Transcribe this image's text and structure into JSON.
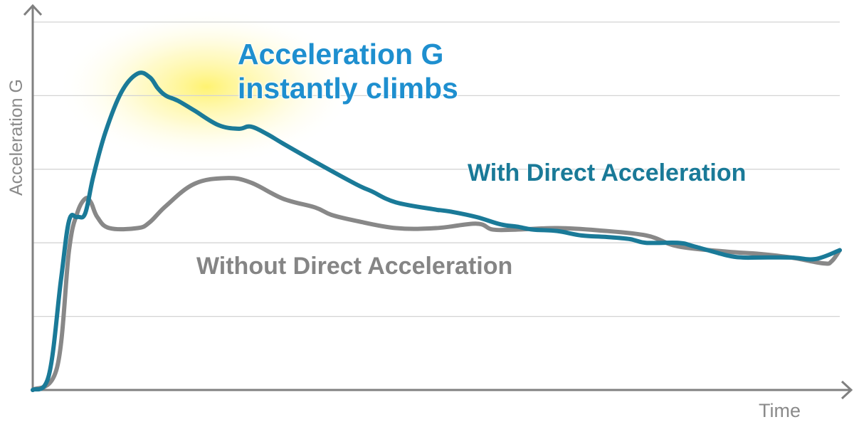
{
  "chart_data": {
    "type": "line",
    "title": "",
    "xlabel": "Time",
    "ylabel": "Acceleration G",
    "x_units": "normalized time (0 = origin, 1 = right end of data)",
    "y_units": "gridline units (0 = x-axis, each horizontal gridline = 1; no numeric ticks shown)",
    "ylim": [
      0,
      5
    ],
    "xlim": [
      0,
      1
    ],
    "grid": {
      "horizontal": true,
      "vertical": false,
      "lines": [
        1,
        2,
        3,
        4,
        5
      ]
    },
    "legend_position": "inline labels",
    "annotations": [
      {
        "text": "Acceleration G instantly climbs",
        "lines": [
          "Acceleration G",
          "instantly climbs"
        ],
        "x": 0.28,
        "y": 4.3,
        "highlight": "yellow glow around peak"
      }
    ],
    "series": [
      {
        "name": "With Direct Acceleration",
        "color": "#1a7a98",
        "x": [
          0.0,
          0.02,
          0.035,
          0.045,
          0.055,
          0.065,
          0.075,
          0.09,
          0.11,
          0.13,
          0.145,
          0.155,
          0.165,
          0.18,
          0.2,
          0.23,
          0.255,
          0.27,
          0.29,
          0.31,
          0.35,
          0.4,
          0.42,
          0.45,
          0.5,
          0.5,
          0.52,
          0.55,
          0.58,
          0.6,
          0.62,
          0.65,
          0.68,
          0.71,
          0.74,
          0.76,
          0.8,
          0.82,
          0.86,
          0.88,
          0.9,
          0.94,
          0.97,
          1.0
        ],
        "y": [
          0.0,
          0.2,
          1.5,
          2.3,
          2.35,
          2.4,
          2.9,
          3.5,
          4.05,
          4.3,
          4.25,
          4.1,
          4.0,
          3.93,
          3.8,
          3.6,
          3.55,
          3.58,
          3.48,
          3.35,
          3.1,
          2.8,
          2.7,
          2.55,
          2.45,
          2.45,
          2.42,
          2.35,
          2.25,
          2.22,
          2.18,
          2.16,
          2.1,
          2.08,
          2.05,
          2.0,
          2.0,
          1.95,
          1.83,
          1.8,
          1.8,
          1.8,
          1.78,
          1.9
        ]
      },
      {
        "name": "Without Direct Acceleration",
        "color": "#888888",
        "x": [
          0.0,
          0.03,
          0.045,
          0.055,
          0.065,
          0.072,
          0.08,
          0.095,
          0.13,
          0.145,
          0.165,
          0.2,
          0.24,
          0.27,
          0.31,
          0.35,
          0.37,
          0.4,
          0.45,
          0.5,
          0.55,
          0.57,
          0.6,
          0.65,
          0.7,
          0.76,
          0.8,
          0.86,
          0.9,
          0.94,
          0.98,
          0.99,
          1.0
        ],
        "y": [
          0.0,
          0.3,
          1.9,
          2.4,
          2.6,
          2.55,
          2.35,
          2.2,
          2.2,
          2.28,
          2.5,
          2.8,
          2.88,
          2.82,
          2.6,
          2.48,
          2.38,
          2.3,
          2.2,
          2.2,
          2.26,
          2.18,
          2.18,
          2.2,
          2.17,
          2.1,
          1.95,
          1.88,
          1.85,
          1.8,
          1.72,
          1.75,
          1.9
        ]
      }
    ]
  },
  "labels": {
    "ylabel": "Acceleration G",
    "xlabel": "Time",
    "annotation_line1": "Acceleration G",
    "annotation_line2": "instantly climbs",
    "legend_with": "With Direct Acceleration",
    "legend_without": "Without Direct Acceleration"
  },
  "colors": {
    "with": "#1a7a98",
    "without": "#888888",
    "annotation": "#1e8fcf",
    "axis": "#808080",
    "grid": "#d4d4d4",
    "glow": "#fff26a"
  }
}
